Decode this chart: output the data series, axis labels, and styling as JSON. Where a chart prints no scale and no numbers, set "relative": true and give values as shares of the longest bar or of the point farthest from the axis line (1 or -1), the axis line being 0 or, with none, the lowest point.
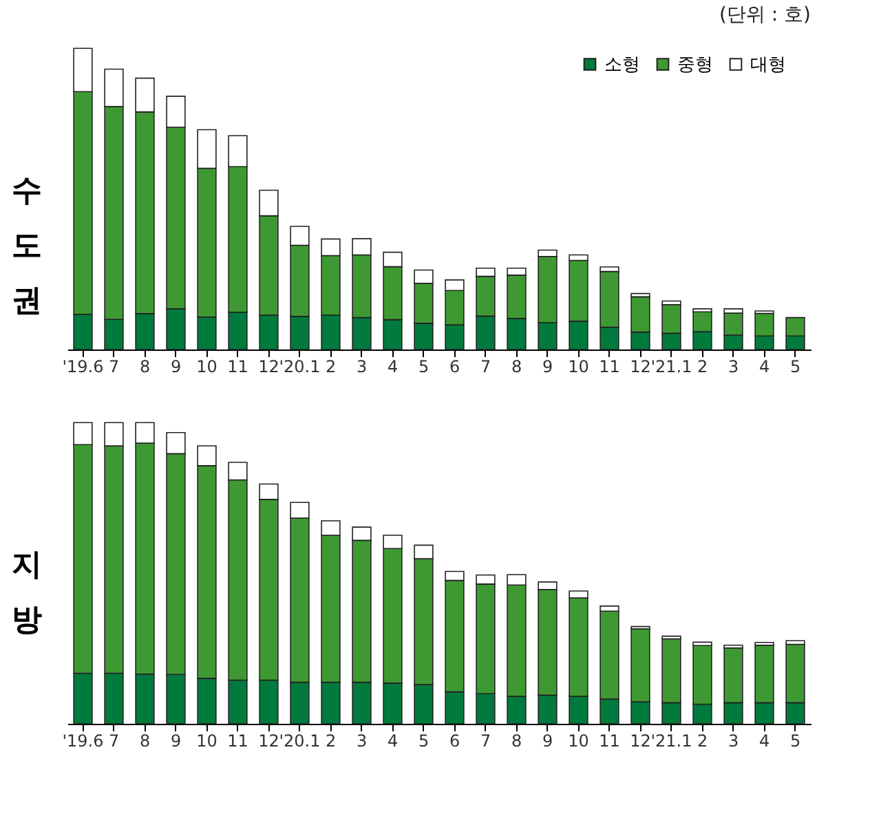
{
  "chart_data": [
    {
      "type": "bar",
      "subtitle": "(단위 : 호)",
      "ylabel": "수도권",
      "stacked": true,
      "relative": true,
      "legend": "top right",
      "categories": [
        "'19.6",
        "7",
        "8",
        "9",
        "10",
        "11",
        "12",
        "'20.1",
        "2",
        "3",
        "4",
        "5",
        "6",
        "7",
        "8",
        "9",
        "10",
        "11",
        "12",
        "'21.1",
        "2",
        "3",
        "4",
        "5"
      ],
      "series": [
        {
          "name": "소형",
          "color": "#007a3d",
          "values": [
            0.117,
            0.1,
            0.119,
            0.135,
            0.108,
            0.124,
            0.114,
            0.11,
            0.114,
            0.106,
            0.099,
            0.087,
            0.082,
            0.111,
            0.103,
            0.089,
            0.094,
            0.074,
            0.058,
            0.054,
            0.059,
            0.048,
            0.045,
            0.045
          ]
        },
        {
          "name": "중형",
          "color": "#3f9933",
          "values": [
            0.739,
            0.707,
            0.67,
            0.603,
            0.494,
            0.483,
            0.33,
            0.236,
            0.198,
            0.208,
            0.176,
            0.133,
            0.114,
            0.132,
            0.144,
            0.22,
            0.202,
            0.185,
            0.117,
            0.095,
            0.066,
            0.073,
            0.075,
            0.061
          ]
        },
        {
          "name": "대형",
          "color": "#ffffff",
          "values": [
            0.144,
            0.124,
            0.112,
            0.103,
            0.128,
            0.103,
            0.085,
            0.063,
            0.055,
            0.054,
            0.048,
            0.044,
            0.035,
            0.027,
            0.023,
            0.021,
            0.018,
            0.015,
            0.011,
            0.012,
            0.01,
            0.014,
            0.008,
            null
          ]
        }
      ]
    },
    {
      "type": "bar",
      "ylabel": "지방",
      "stacked": true,
      "relative": true,
      "legend": "top right",
      "categories": [
        "'19.6",
        "7",
        "8",
        "9",
        "10",
        "11",
        "12",
        "'20.1",
        "2",
        "3",
        "4",
        "5",
        "6",
        "7",
        "8",
        "9",
        "10",
        "11",
        "12",
        "'21.1",
        "2",
        "3",
        "4",
        "5"
      ],
      "series": [
        {
          "name": "소형",
          "color": "#007a3d",
          "values": [
            0.168,
            0.168,
            0.165,
            0.164,
            0.151,
            0.145,
            0.145,
            0.138,
            0.138,
            0.138,
            0.135,
            0.13,
            0.106,
            0.1,
            0.091,
            0.095,
            0.091,
            0.082,
            0.073,
            0.07,
            0.065,
            0.07,
            0.07,
            0.07
          ]
        },
        {
          "name": "중형",
          "color": "#3f9933",
          "values": [
            0.759,
            0.755,
            0.767,
            0.733,
            0.706,
            0.665,
            0.6,
            0.545,
            0.488,
            0.471,
            0.447,
            0.418,
            0.37,
            0.364,
            0.37,
            0.351,
            0.327,
            0.292,
            0.242,
            0.212,
            0.195,
            0.182,
            0.191,
            0.194
          ]
        },
        {
          "name": "대형",
          "color": "#ffffff",
          "values": [
            0.073,
            0.077,
            0.068,
            0.07,
            0.066,
            0.058,
            0.051,
            0.052,
            0.048,
            0.044,
            0.044,
            0.045,
            0.03,
            0.03,
            0.034,
            0.025,
            0.023,
            0.017,
            0.008,
            0.009,
            0.011,
            0.009,
            0.009,
            0.012
          ]
        }
      ]
    }
  ]
}
